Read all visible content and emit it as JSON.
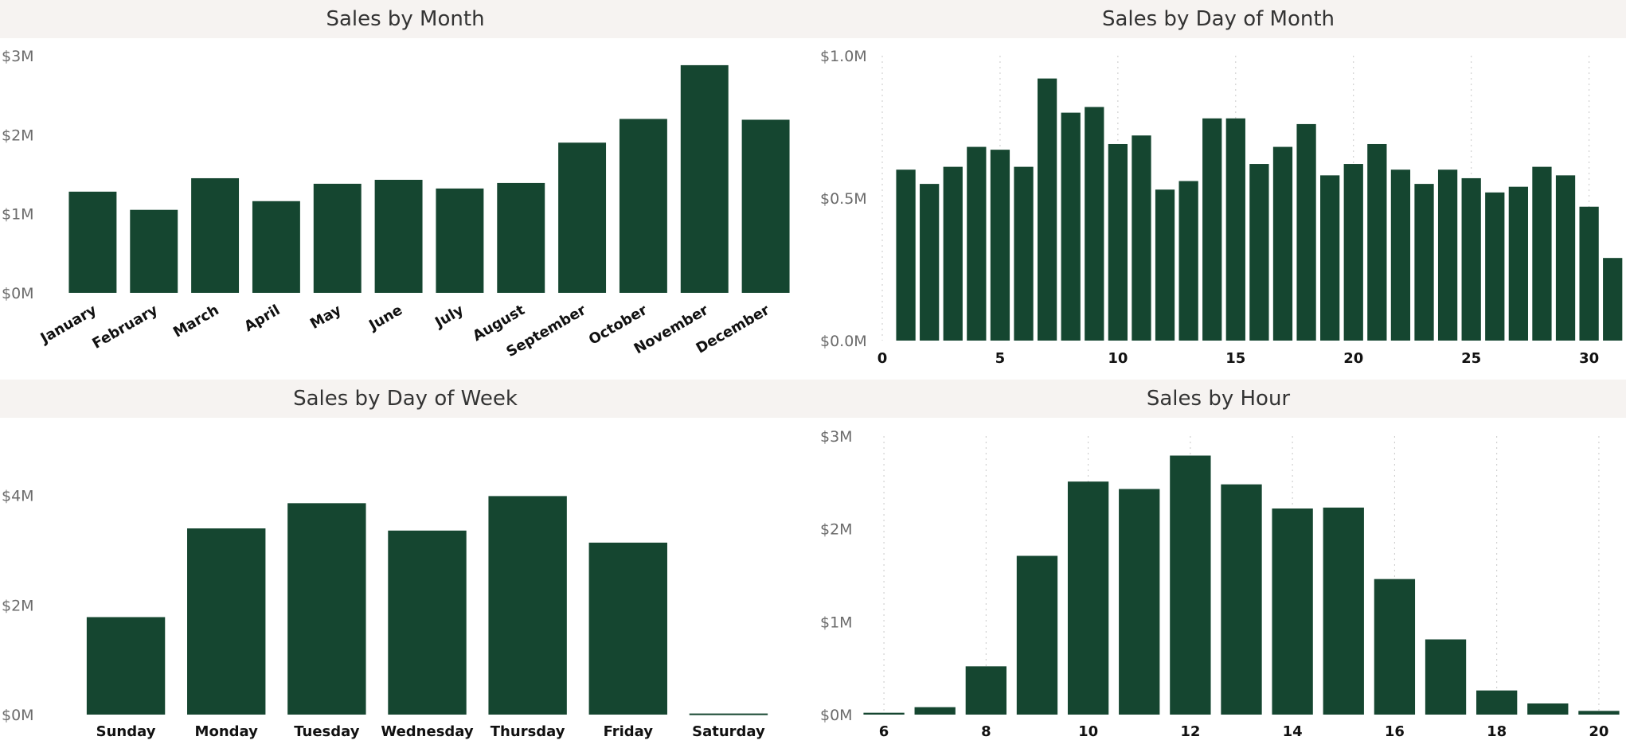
{
  "chart_data": [
    {
      "type": "bar",
      "title": "Sales by Month",
      "categories": [
        "January",
        "February",
        "March",
        "April",
        "May",
        "June",
        "July",
        "August",
        "September",
        "October",
        "November",
        "December"
      ],
      "values": [
        1.28,
        1.05,
        1.45,
        1.16,
        1.38,
        1.43,
        1.32,
        1.39,
        1.9,
        2.2,
        2.88,
        2.19
      ],
      "yticks": [
        {
          "v": 0,
          "label": "$0M"
        },
        {
          "v": 1,
          "label": "$1M"
        },
        {
          "v": 2,
          "label": "$2M"
        },
        {
          "v": 3,
          "label": "$3M"
        }
      ],
      "ylim": [
        0,
        3
      ],
      "bar_color": "#154630",
      "xlabel": "",
      "ylabel": ""
    },
    {
      "type": "bar",
      "title": "Sales by Day of Month",
      "x": [
        1,
        2,
        3,
        4,
        5,
        6,
        7,
        8,
        9,
        10,
        11,
        12,
        13,
        14,
        15,
        16,
        17,
        18,
        19,
        20,
        21,
        22,
        23,
        24,
        25,
        26,
        27,
        28,
        29,
        30,
        31
      ],
      "values": [
        0.6,
        0.55,
        0.61,
        0.68,
        0.67,
        0.61,
        0.92,
        0.8,
        0.82,
        0.69,
        0.72,
        0.53,
        0.56,
        0.78,
        0.78,
        0.62,
        0.68,
        0.76,
        0.58,
        0.62,
        0.69,
        0.6,
        0.55,
        0.6,
        0.57,
        0.52,
        0.54,
        0.61,
        0.58,
        0.47,
        0.29
      ],
      "xticks": [
        0,
        5,
        10,
        15,
        20,
        25,
        30
      ],
      "yticks": [
        {
          "v": 0,
          "label": "$0.0M"
        },
        {
          "v": 0.5,
          "label": "$0.5M"
        },
        {
          "v": 1.0,
          "label": "$1.0M"
        }
      ],
      "ylim": [
        0,
        1.0
      ],
      "xlim": [
        0,
        31.5
      ],
      "grid": true,
      "bar_color": "#154630",
      "xlabel": "",
      "ylabel": ""
    },
    {
      "type": "bar",
      "title": "Sales by Day of Week",
      "categories": [
        "Sunday",
        "Monday",
        "Tuesday",
        "Wednesday",
        "Thursday",
        "Friday",
        "Saturday"
      ],
      "values": [
        1.78,
        3.4,
        3.86,
        3.36,
        3.99,
        3.14,
        0.02
      ],
      "yticks": [
        {
          "v": 0,
          "label": "$0M"
        },
        {
          "v": 2,
          "label": "$2M"
        },
        {
          "v": 4,
          "label": "$4M"
        }
      ],
      "ylim": [
        0,
        5.1
      ],
      "bar_color": "#154630",
      "xlabel": "",
      "ylabel": ""
    },
    {
      "type": "bar",
      "title": "Sales by Hour",
      "x": [
        6,
        7,
        8,
        9,
        10,
        11,
        12,
        13,
        14,
        15,
        16,
        17,
        18,
        19,
        20
      ],
      "values": [
        0.02,
        0.08,
        0.52,
        1.71,
        2.51,
        2.43,
        2.79,
        2.48,
        2.22,
        2.23,
        1.46,
        0.81,
        0.26,
        0.12,
        0.04
      ],
      "xticks": [
        6,
        8,
        10,
        12,
        14,
        16,
        18,
        20
      ],
      "yticks": [
        {
          "v": 0,
          "label": "$0M"
        },
        {
          "v": 1,
          "label": "$1M"
        },
        {
          "v": 2,
          "label": "$2M"
        },
        {
          "v": 3,
          "label": "$3M"
        }
      ],
      "ylim": [
        0,
        3
      ],
      "xlim": [
        5.5,
        20.5
      ],
      "grid": true,
      "bar_color": "#154630",
      "xlabel": "",
      "ylabel": ""
    }
  ]
}
